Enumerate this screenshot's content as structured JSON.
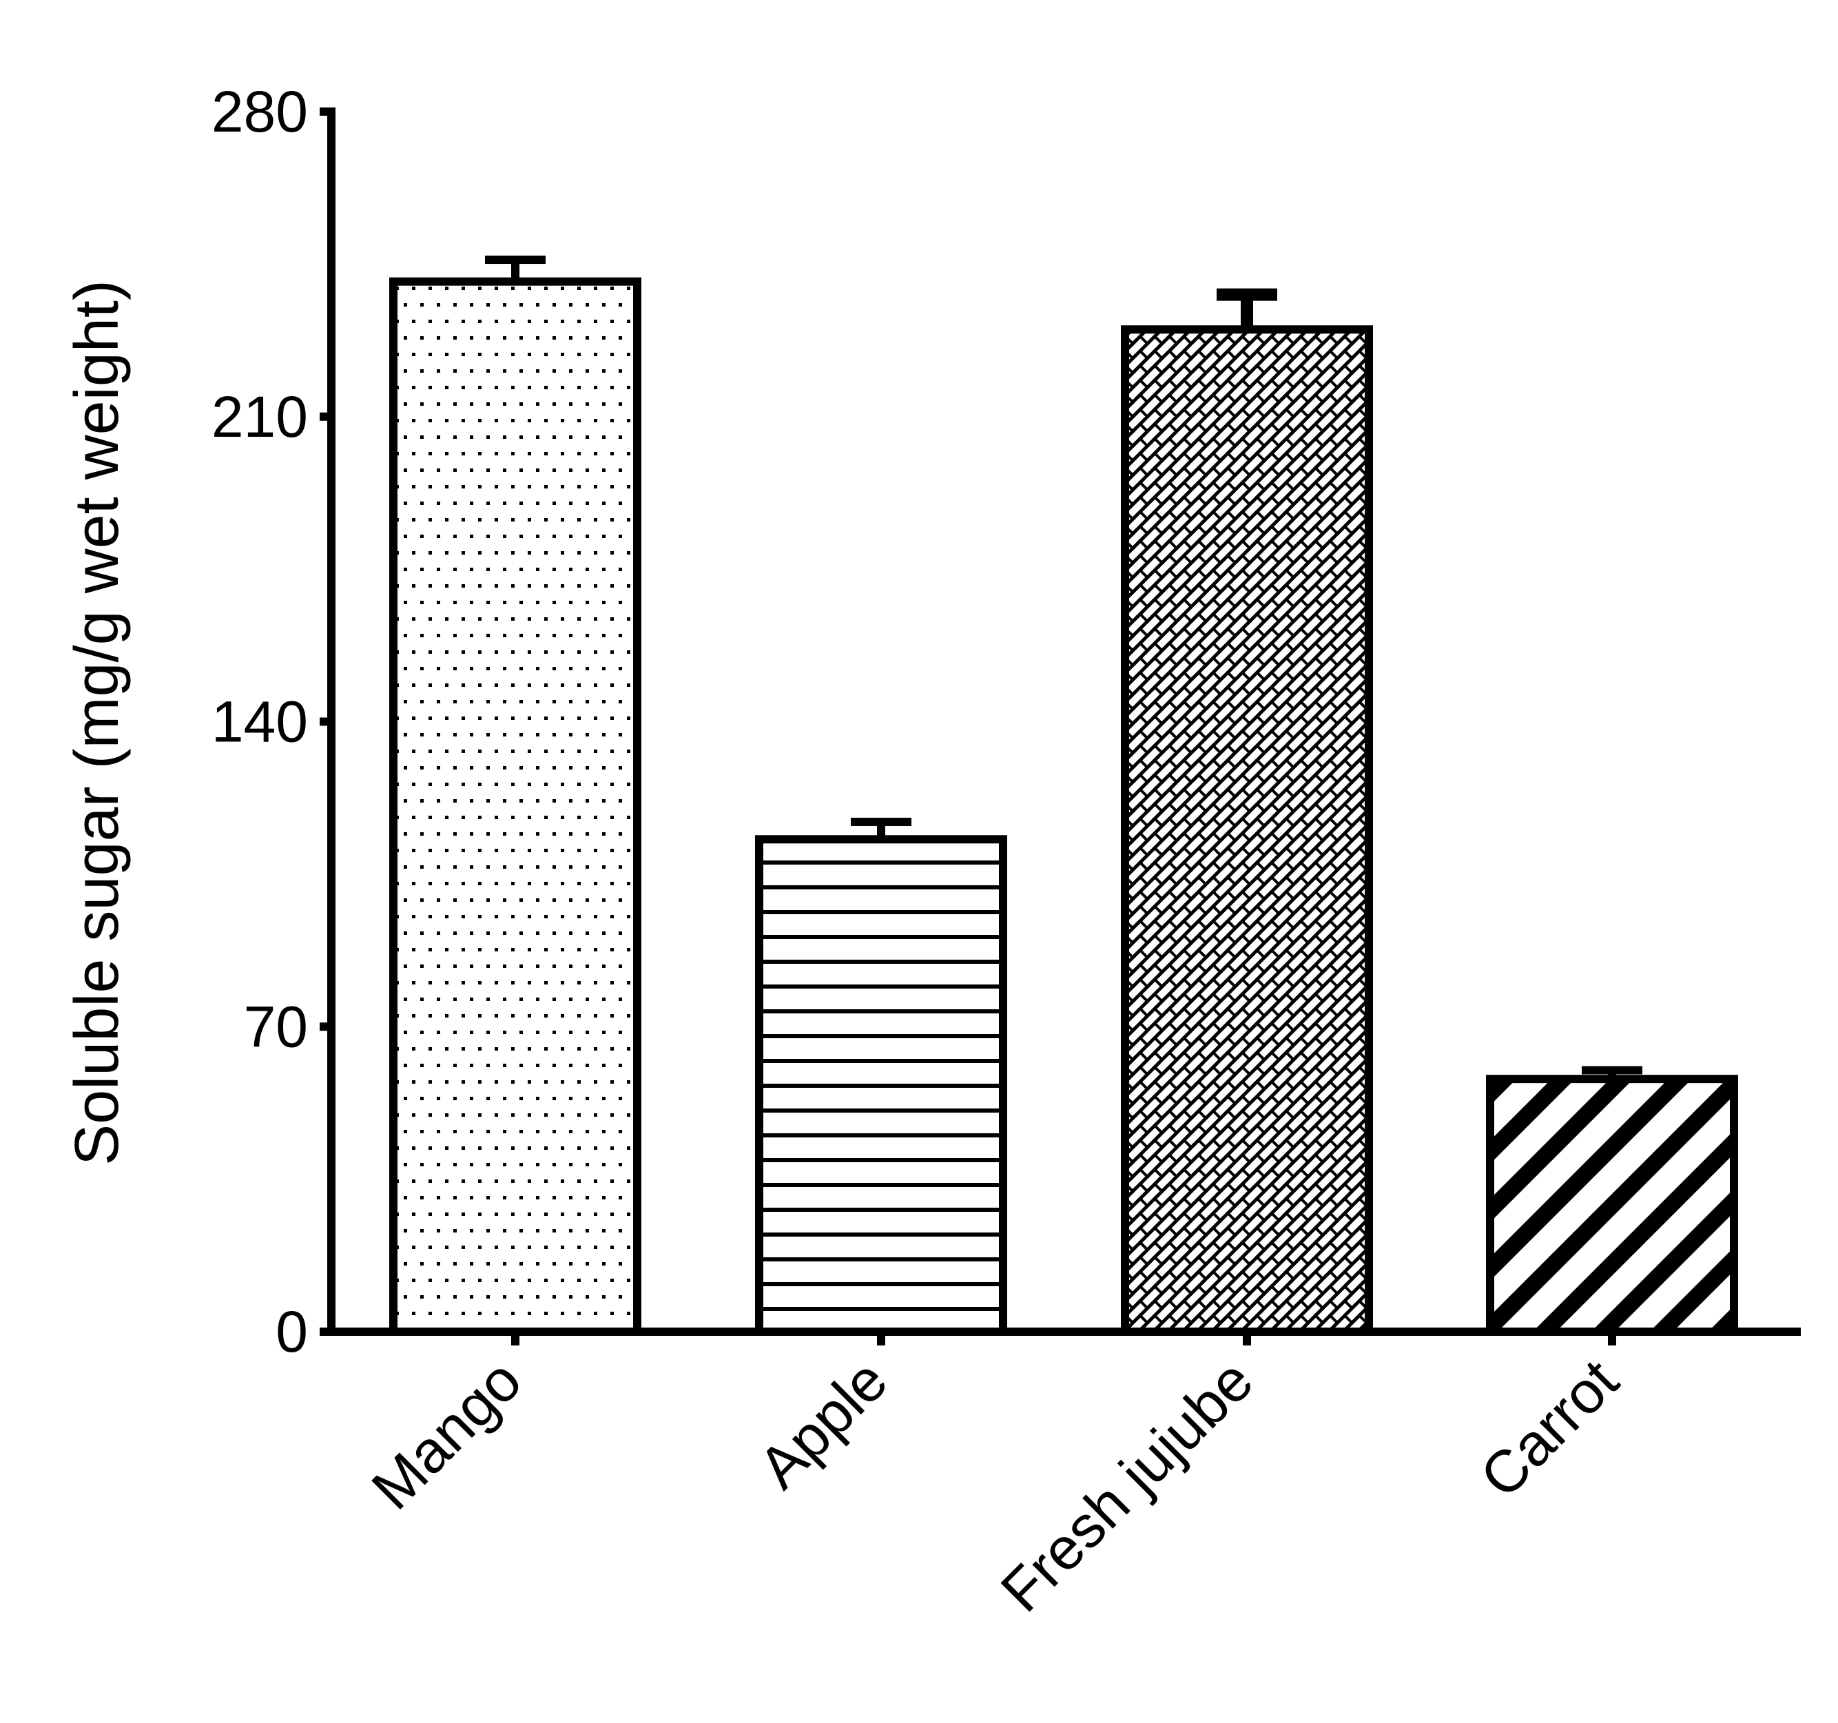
{
  "chart_data": {
    "type": "bar",
    "title": "",
    "xlabel": "",
    "ylabel": "Soluble sugar (mg/g wet weight)",
    "categories": [
      "Mango",
      "Apple",
      "Fresh jujube",
      "Carrot"
    ],
    "values": [
      241,
      113,
      230,
      58
    ],
    "errors": [
      5,
      4,
      8,
      2
    ],
    "ylim": [
      0,
      280
    ],
    "yticks": [
      0,
      70,
      140,
      210,
      280
    ],
    "ytick_labels": [
      "0",
      "70",
      "140",
      "210",
      "280"
    ],
    "grid": false,
    "legend": null,
    "bar_fill_patterns": [
      "dots",
      "horizontal-lines",
      "diagonal-bricks",
      "diagonal-stripes"
    ],
    "colors": {
      "stroke": "#000000",
      "fill": "#ffffff"
    },
    "x_label_rotation": -45
  }
}
